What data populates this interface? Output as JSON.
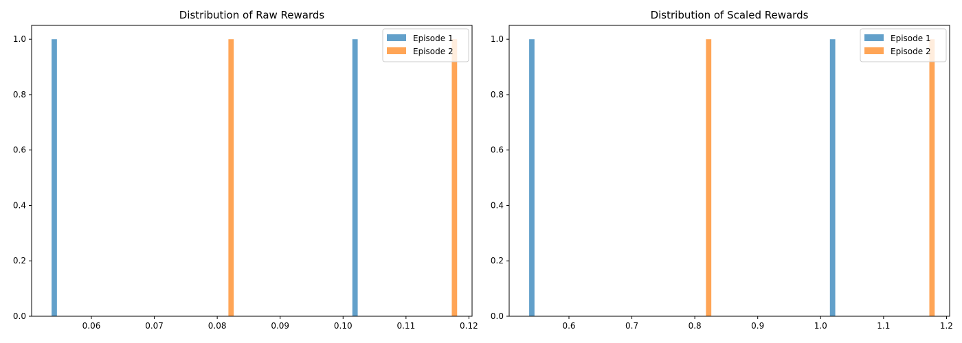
{
  "chart_data": [
    {
      "type": "histogram",
      "title": "Distribution of Raw Rewards",
      "xlim": [
        0.0505,
        0.1205
      ],
      "ylim": [
        0,
        1.05
      ],
      "xticks": [
        "0.06",
        "0.07",
        "0.08",
        "0.09",
        "0.10",
        "0.11",
        "0.12"
      ],
      "yticks": [
        "0.0",
        "0.2",
        "0.4",
        "0.6",
        "0.8",
        "1.0"
      ],
      "bin_width": 0.00085,
      "legend": "top-right",
      "series": [
        {
          "name": "Episode 1",
          "color": "#1f77b4",
          "bars": [
            {
              "x": 0.0541,
              "count": 1
            },
            {
              "x": 0.1019,
              "count": 1
            }
          ]
        },
        {
          "name": "Episode 2",
          "color": "#ff7f0e",
          "bars": [
            {
              "x": 0.0822,
              "count": 1
            },
            {
              "x": 0.1177,
              "count": 1
            }
          ]
        }
      ]
    },
    {
      "type": "histogram",
      "title": "Distribution of Scaled Rewards",
      "xlim": [
        0.505,
        1.205
      ],
      "ylim": [
        0,
        1.05
      ],
      "xticks": [
        "0.6",
        "0.7",
        "0.8",
        "0.9",
        "1.0",
        "1.1",
        "1.2"
      ],
      "yticks": [
        "0.0",
        "0.2",
        "0.4",
        "0.6",
        "0.8",
        "1.0"
      ],
      "bin_width": 0.0085,
      "legend": "top-right",
      "series": [
        {
          "name": "Episode 1",
          "color": "#1f77b4",
          "bars": [
            {
              "x": 0.541,
              "count": 1
            },
            {
              "x": 1.019,
              "count": 1
            }
          ]
        },
        {
          "name": "Episode 2",
          "color": "#ff7f0e",
          "bars": [
            {
              "x": 0.822,
              "count": 1
            },
            {
              "x": 1.177,
              "count": 1
            }
          ]
        }
      ]
    }
  ]
}
